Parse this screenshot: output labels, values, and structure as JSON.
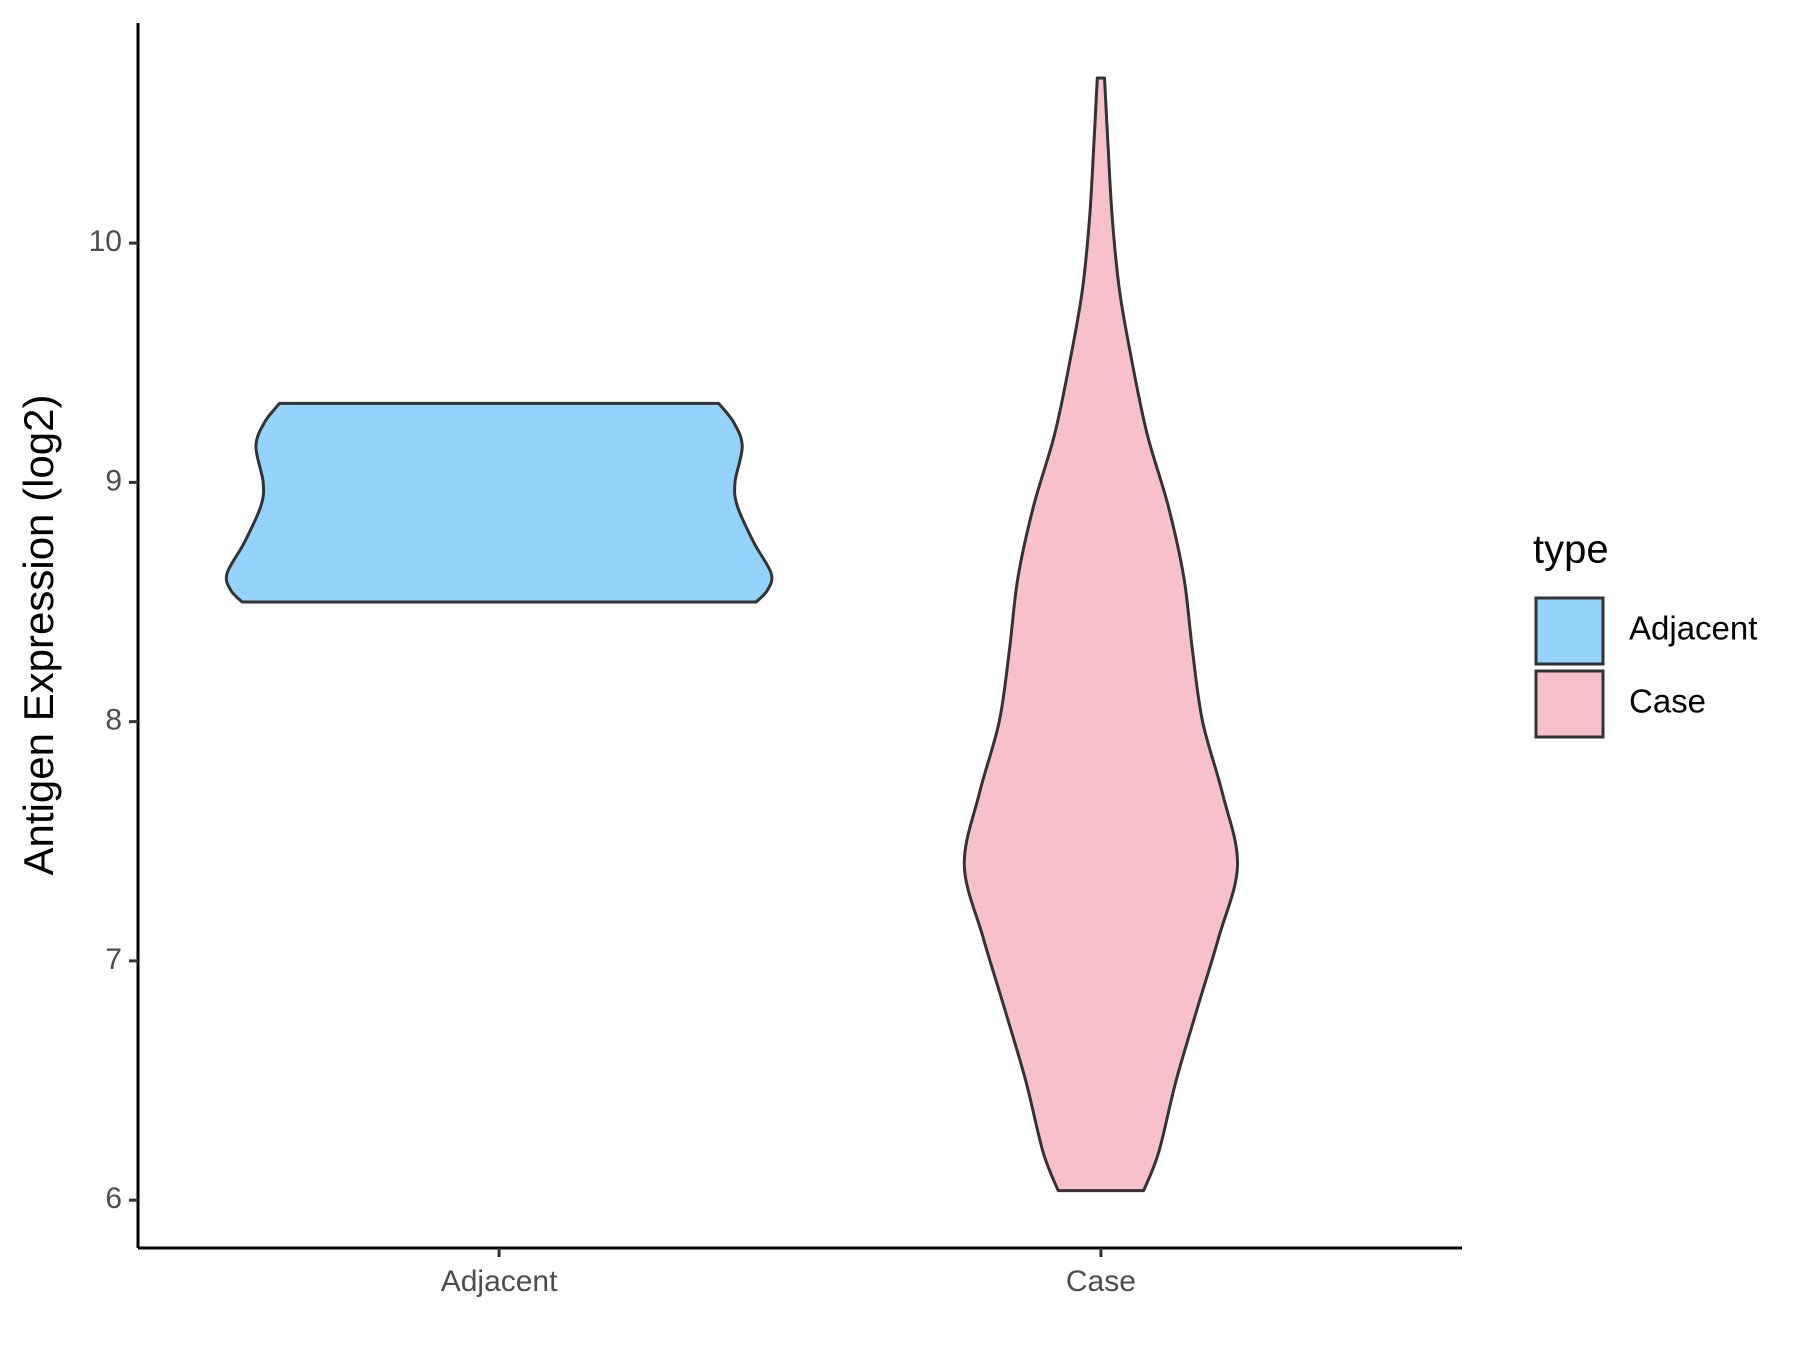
{
  "chart_data": {
    "type": "violin",
    "y_label": "Antigen Expression (log2)",
    "ylim": [
      5.8,
      10.92
    ],
    "yticks": [
      6,
      7,
      8,
      9,
      10
    ],
    "categories": [
      "Adjacent",
      "Case"
    ],
    "legend_title": "type",
    "series": [
      {
        "name": "Adjacent",
        "color": "#93d3fc",
        "y": [
          8.5,
          8.55,
          8.62,
          8.75,
          8.9,
          9.0,
          9.15,
          9.25,
          9.33
        ],
        "width": [
          0.427,
          0.446,
          0.452,
          0.423,
          0.396,
          0.392,
          0.404,
          0.39,
          0.365
        ]
      },
      {
        "name": "Case",
        "color": "#f7c0cb",
        "y": [
          6.04,
          6.2,
          6.5,
          6.8,
          7.1,
          7.4,
          7.7,
          8.0,
          8.3,
          8.6,
          8.9,
          9.2,
          9.5,
          9.8,
          10.1,
          10.4,
          10.69
        ],
        "width": [
          0.071,
          0.096,
          0.125,
          0.16,
          0.196,
          0.227,
          0.202,
          0.169,
          0.152,
          0.138,
          0.112,
          0.077,
          0.052,
          0.031,
          0.019,
          0.012,
          0.006
        ]
      }
    ]
  }
}
